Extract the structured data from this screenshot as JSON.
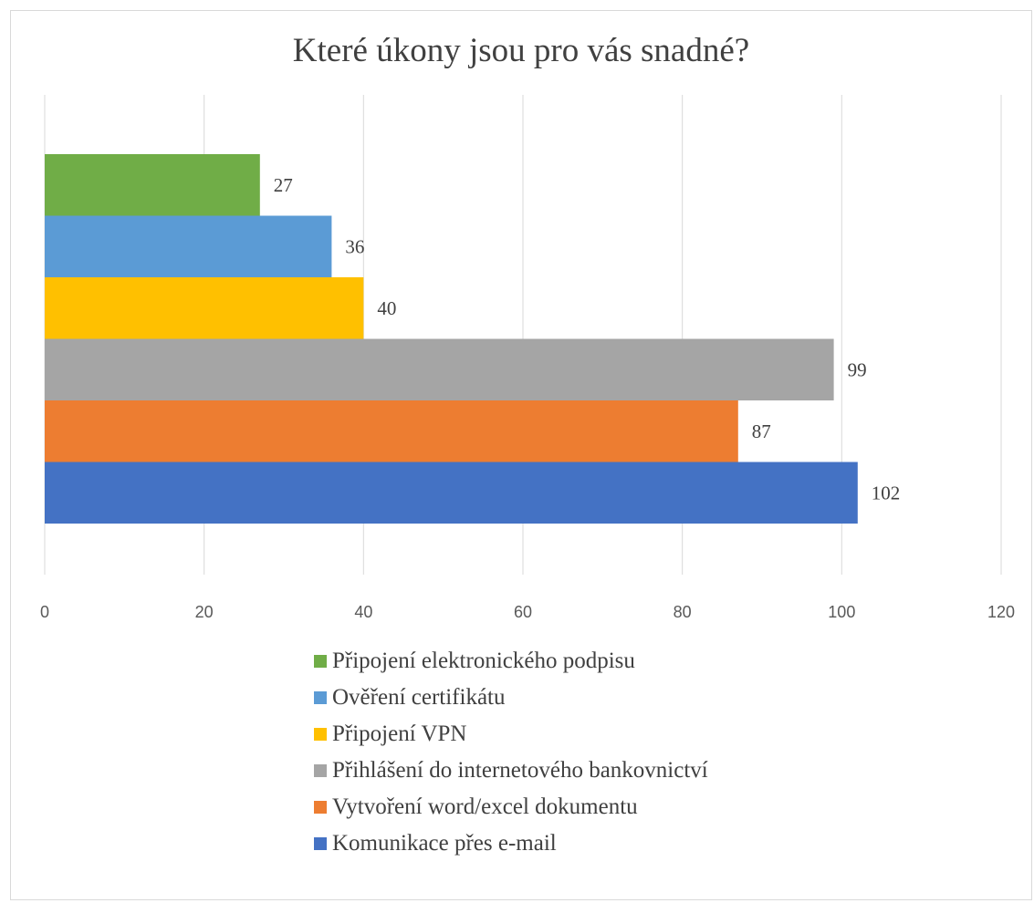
{
  "chart_data": {
    "type": "bar",
    "orientation": "horizontal",
    "title": "Které úkony jsou pro vás snadné?",
    "xlabel": "",
    "ylabel": "",
    "xlim": [
      0,
      120
    ],
    "x_ticks": [
      0,
      20,
      40,
      60,
      80,
      100,
      120
    ],
    "grid": true,
    "legend_position": "bottom",
    "series": [
      {
        "name": "Připojení elektronického podpisu",
        "value": 27,
        "color": "#70ad47"
      },
      {
        "name": "Ověření certifikátu",
        "value": 36,
        "color": "#5b9bd5"
      },
      {
        "name": "Připojení VPN",
        "value": 40,
        "color": "#ffc000"
      },
      {
        "name": "Přihlášení do internetového bankovnictví",
        "value": 99,
        "color": "#a5a5a5"
      },
      {
        "name": "Vytvoření word/excel dokumentu",
        "value": 87,
        "color": "#ed7d31"
      },
      {
        "name": "Komunikace přes e-mail",
        "value": 102,
        "color": "#4472c4"
      }
    ]
  }
}
